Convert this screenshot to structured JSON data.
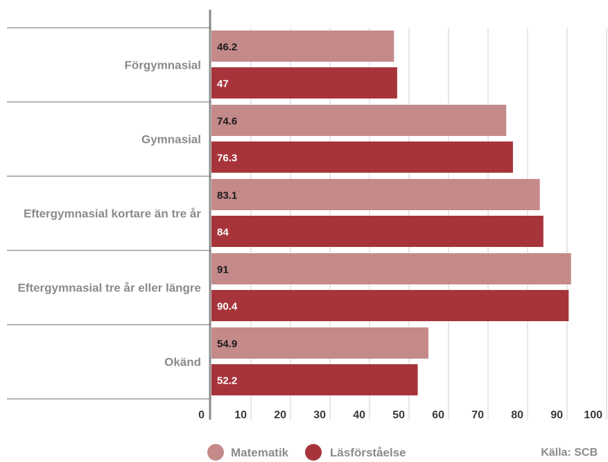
{
  "chart_data": {
    "type": "bar",
    "orientation": "horizontal",
    "categories": [
      "Förgymnasial",
      "Gymnasial",
      "Eftergymnasial kortare än tre år",
      "Eftergymnasial tre år eller längre",
      "Okänd"
    ],
    "series": [
      {
        "name": "Matematik",
        "values": [
          46.2,
          74.6,
          83.1,
          91,
          54.9
        ],
        "value_labels": [
          "46.2",
          "74.6",
          "83.1",
          "91",
          "54.9"
        ],
        "color": "#c48a8a",
        "label_color": "#1a1a1a"
      },
      {
        "name": "Läsförståelse",
        "values": [
          47,
          76.3,
          84,
          90.4,
          52.2
        ],
        "value_labels": [
          "47",
          "76.3",
          "84",
          "90.4",
          "52.2"
        ],
        "color": "#a8343b",
        "label_color": "#ffffff"
      }
    ],
    "xlim": [
      0,
      100
    ],
    "xticks": [
      "0",
      "10",
      "20",
      "30",
      "40",
      "50",
      "60",
      "70",
      "80",
      "90",
      "100"
    ],
    "grid": true,
    "legend": "bottom-center",
    "source": "Källa: SCB"
  }
}
